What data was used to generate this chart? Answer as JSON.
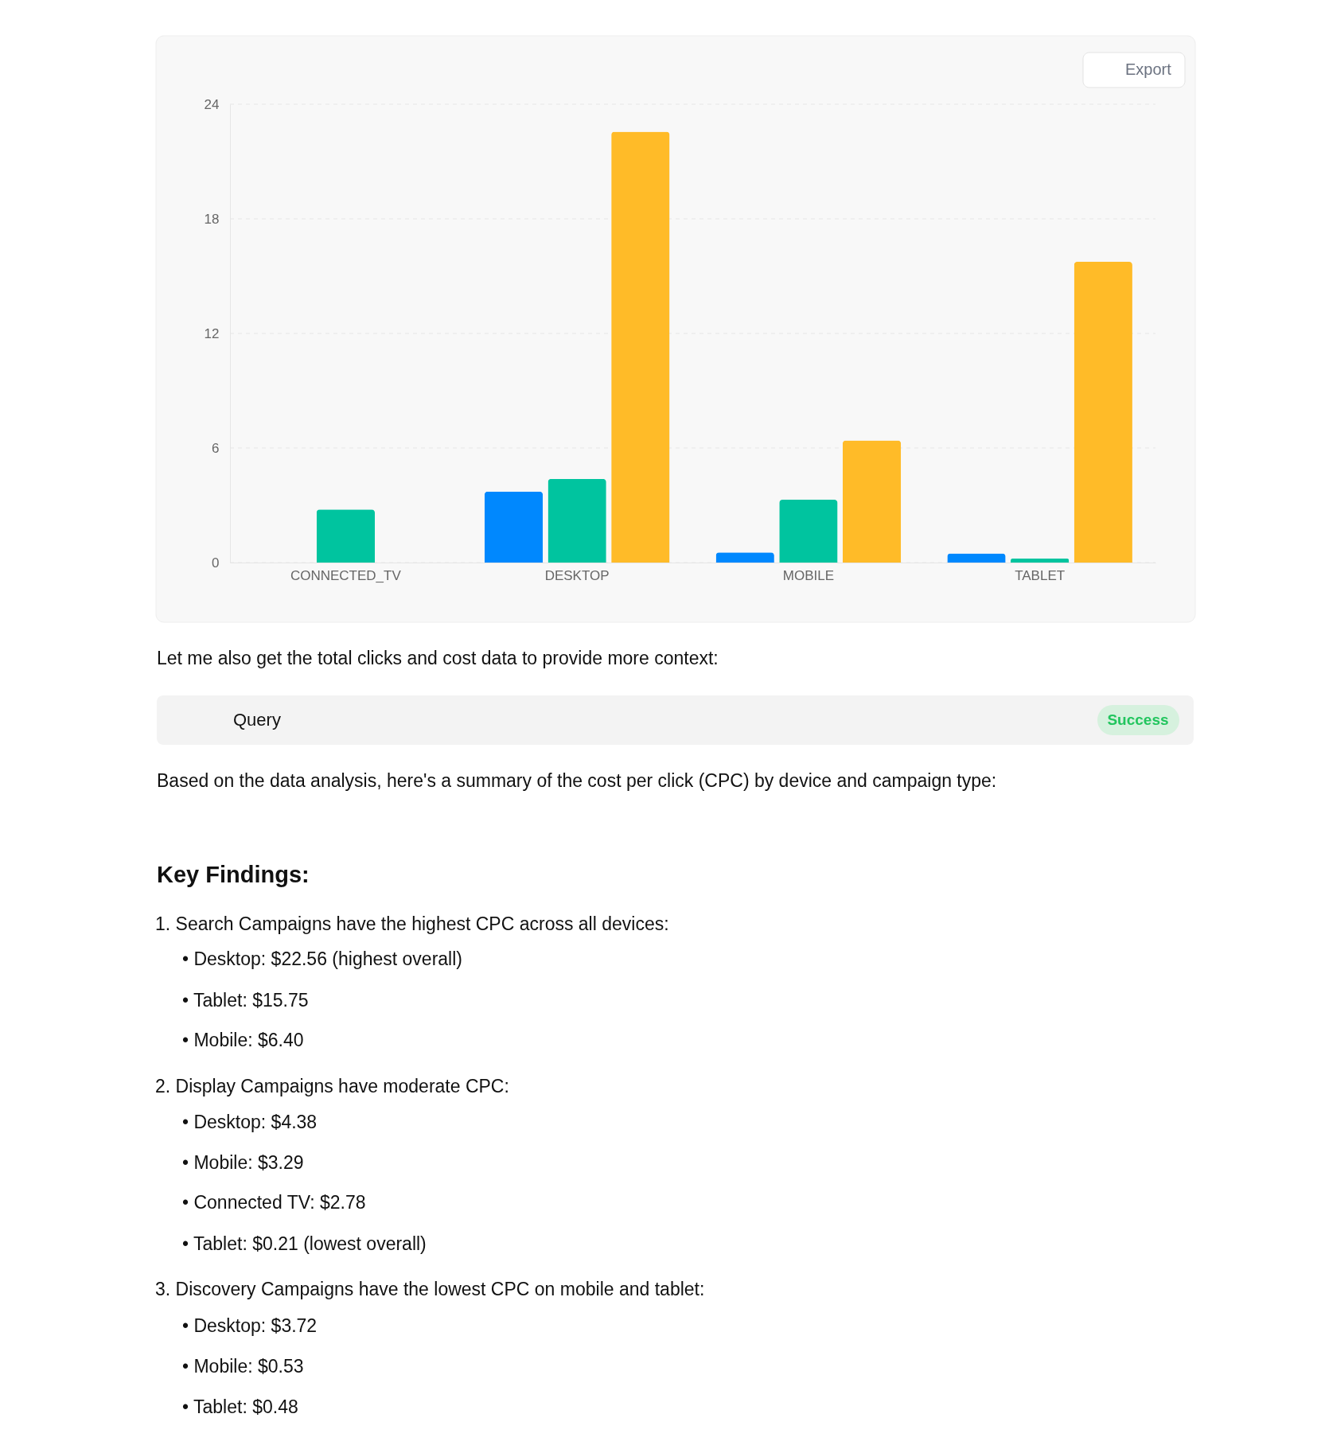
{
  "chart_data": {
    "type": "bar",
    "categories": [
      "CONNECTED_TV",
      "DESKTOP",
      "MOBILE",
      "TABLET"
    ],
    "series": [
      {
        "color": "#0088fe",
        "values": [
          null,
          3.72,
          0.53,
          0.48
        ]
      },
      {
        "color": "#00c49f",
        "values": [
          2.78,
          4.38,
          3.29,
          0.21
        ]
      },
      {
        "color": "#ffbb28",
        "values": [
          null,
          22.56,
          6.4,
          15.75
        ]
      }
    ],
    "ylim": [
      0,
      24
    ],
    "yticks": [
      0,
      6,
      12,
      18,
      24
    ],
    "grid": "y",
    "annotations": [
      "Export",
      "Let me also get the total clicks and cost data to provide more context:",
      "Query",
      "Success",
      "Based on the data analysis, here's a summary of the cost per click (CPC) by device and campaign type:",
      "Key Findings:",
      "1. Search Campaigns have the highest CPC across all devices:",
      "• Desktop: $22.56 (highest overall)",
      "• Tablet: $15.75",
      "• Mobile: $6.40",
      "2. Display Campaigns have moderate CPC:",
      "• Desktop: $4.38",
      "• Mobile: $3.29",
      "• Connected TV: $2.78",
      "• Tablet: $0.21 (lowest overall)",
      "3. Discovery Campaigns have the lowest CPC on mobile and tablet:",
      "• Desktop: $3.72",
      "• Mobile: $0.53",
      "• Tablet: $0.48"
    ]
  }
}
